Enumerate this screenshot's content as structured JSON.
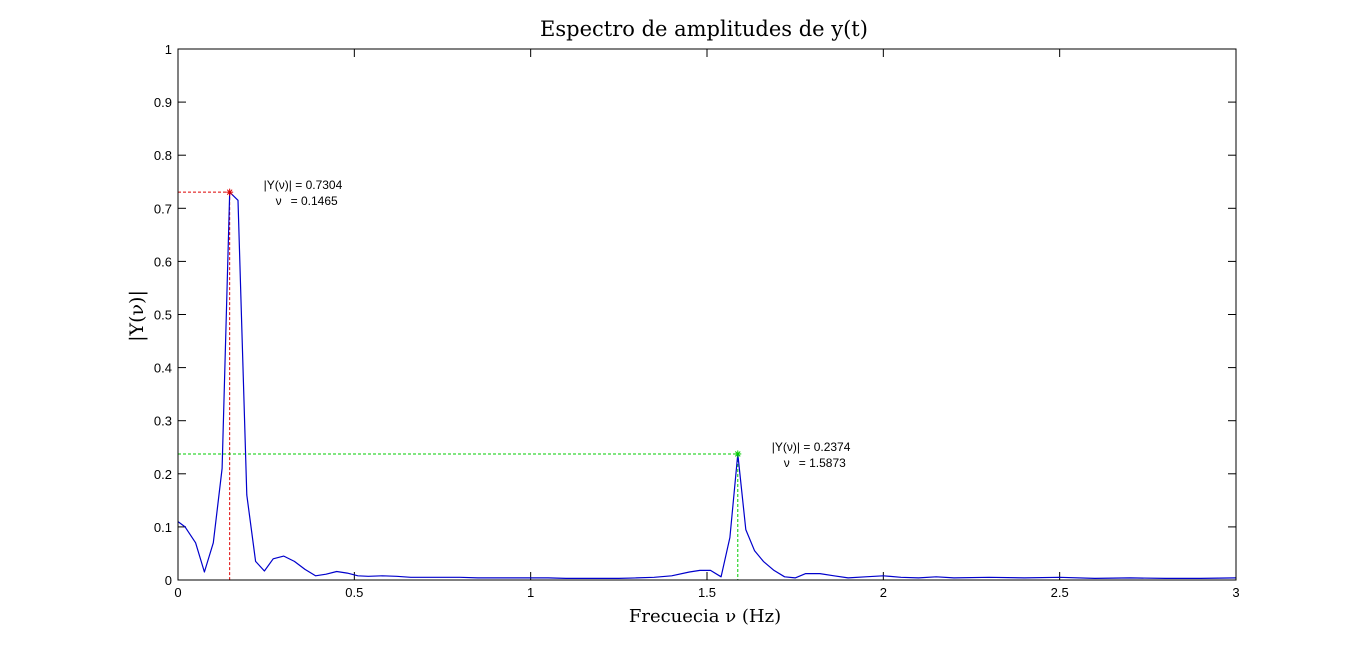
{
  "chart_data": {
    "type": "line",
    "title": "Espectro de amplitudes de y(t)",
    "xlabel": "Frecuecia ν (Hz)",
    "ylabel": "|Y(ν)|",
    "xlim": [
      0,
      3
    ],
    "ylim": [
      0,
      1
    ],
    "grid": false,
    "x_ticks": [
      "0",
      "0.5",
      "1",
      "1.5",
      "2",
      "2.5",
      "3"
    ],
    "y_ticks": [
      "0",
      "0.1",
      "0.2",
      "0.3",
      "0.4",
      "0.5",
      "0.6",
      "0.7",
      "0.8",
      "0.9",
      "1"
    ],
    "series": [
      {
        "color": "#0000cc",
        "x": [
          0,
          0.02,
          0.05,
          0.075,
          0.1,
          0.125,
          0.1465,
          0.17,
          0.195,
          0.22,
          0.245,
          0.27,
          0.3,
          0.33,
          0.36,
          0.39,
          0.42,
          0.45,
          0.48,
          0.51,
          0.54,
          0.58,
          0.62,
          0.66,
          0.7,
          0.75,
          0.8,
          0.85,
          0.9,
          0.95,
          1.0,
          1.05,
          1.1,
          1.15,
          1.2,
          1.25,
          1.3,
          1.35,
          1.4,
          1.45,
          1.48,
          1.51,
          1.54,
          1.565,
          1.5873,
          1.61,
          1.635,
          1.66,
          1.69,
          1.72,
          1.75,
          1.78,
          1.82,
          1.86,
          1.9,
          1.95,
          2.0,
          2.05,
          2.1,
          2.15,
          2.2,
          2.3,
          2.4,
          2.5,
          2.6,
          2.7,
          2.8,
          2.9,
          3.0
        ],
        "y": [
          0.11,
          0.1,
          0.07,
          0.015,
          0.07,
          0.21,
          0.7304,
          0.715,
          0.16,
          0.035,
          0.017,
          0.04,
          0.045,
          0.035,
          0.02,
          0.008,
          0.011,
          0.016,
          0.013,
          0.008,
          0.007,
          0.008,
          0.007,
          0.005,
          0.005,
          0.005,
          0.005,
          0.004,
          0.004,
          0.004,
          0.004,
          0.004,
          0.003,
          0.003,
          0.003,
          0.003,
          0.004,
          0.005,
          0.008,
          0.015,
          0.018,
          0.018,
          0.006,
          0.08,
          0.2374,
          0.095,
          0.055,
          0.035,
          0.018,
          0.006,
          0.004,
          0.012,
          0.012,
          0.008,
          0.004,
          0.006,
          0.008,
          0.005,
          0.004,
          0.006,
          0.004,
          0.005,
          0.004,
          0.005,
          0.003,
          0.004,
          0.003,
          0.003,
          0.004
        ]
      }
    ],
    "annotations": [
      {
        "x": 0.1465,
        "y": 0.7304,
        "color": "#dd0000",
        "line1": "|Y(ν)| = 0.7304",
        "line2_sym": "ν",
        "line2_val": "= 0.1465"
      },
      {
        "x": 1.5873,
        "y": 0.2374,
        "color": "#00cc00",
        "line1": "|Y(ν)| = 0.2374",
        "line2_sym": "ν",
        "line2_val": "= 1.5873"
      }
    ]
  }
}
